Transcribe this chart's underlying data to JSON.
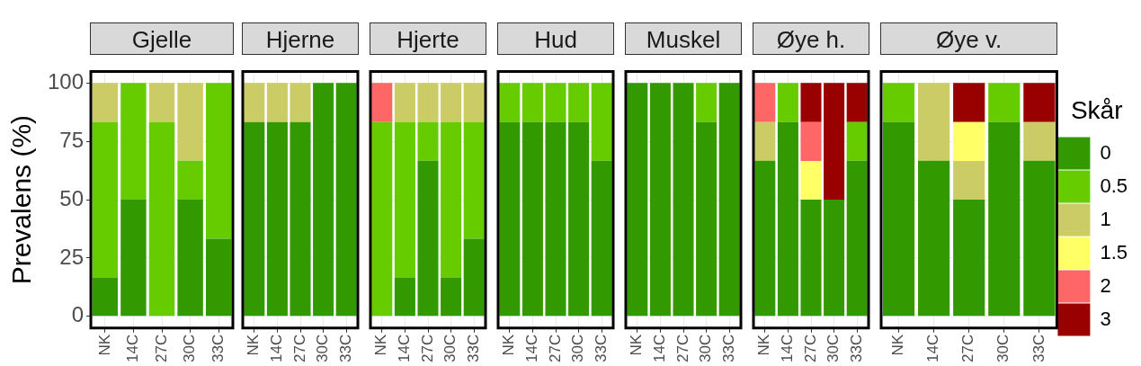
{
  "chart_data": [
    {
      "type": "bar",
      "title": "Gjelle",
      "ylabel": "Prevalens (%)",
      "stacked": true,
      "grid": true,
      "ylim": [
        -5,
        105
      ],
      "yticks": [
        0,
        25,
        50,
        75,
        100
      ],
      "categories": [
        "NK",
        "14C",
        "27C",
        "30C",
        "33C"
      ],
      "series": [
        {
          "color": "#339900",
          "values": [
            16.7,
            50,
            0,
            50,
            33.3
          ]
        },
        {
          "color": "#66cc00",
          "values": [
            66.6,
            50,
            83.3,
            16.7,
            66.7
          ]
        },
        {
          "color": "#cccc66",
          "values": [
            16.7,
            0,
            16.7,
            33.3,
            0
          ]
        }
      ]
    },
    {
      "type": "bar",
      "title": "Hjerne",
      "stacked": true,
      "grid": true,
      "tick_labels": "x",
      "ylim": [
        -5,
        105
      ],
      "yticks": [
        0,
        25,
        50,
        75,
        100
      ],
      "categories": [
        "NK",
        "14C",
        "27C",
        "30C",
        "33C"
      ],
      "series": [
        {
          "color": "#339900",
          "values": [
            83.3,
            83.3,
            83.3,
            100,
            100
          ]
        },
        {
          "color": "#cccc66",
          "values": [
            16.7,
            16.7,
            16.7,
            0,
            0
          ]
        }
      ]
    },
    {
      "type": "bar",
      "title": "Hjerte",
      "stacked": true,
      "grid": true,
      "tick_labels": "x",
      "ylim": [
        -5,
        105
      ],
      "yticks": [
        0,
        25,
        50,
        75,
        100
      ],
      "categories": [
        "NK",
        "14C",
        "27C",
        "30C",
        "33C"
      ],
      "series": [
        {
          "color": "#339900",
          "values": [
            0,
            16.7,
            66.7,
            16.7,
            33.3
          ]
        },
        {
          "color": "#66cc00",
          "values": [
            83.3,
            66.6,
            16.6,
            66.6,
            50
          ]
        },
        {
          "color": "#cccc66",
          "values": [
            0,
            16.7,
            16.7,
            16.7,
            16.7
          ]
        },
        {
          "color": "#ff6666",
          "values": [
            16.7,
            0,
            0,
            0,
            0
          ]
        }
      ]
    },
    {
      "type": "bar",
      "title": "Hud",
      "stacked": true,
      "grid": true,
      "tick_labels": "x",
      "ylim": [
        -5,
        105
      ],
      "yticks": [
        0,
        25,
        50,
        75,
        100
      ],
      "categories": [
        "NK",
        "14C",
        "27C",
        "30C",
        "33C"
      ],
      "series": [
        {
          "color": "#339900",
          "values": [
            83.3,
            83.3,
            83.3,
            83.3,
            66.7
          ]
        },
        {
          "color": "#66cc00",
          "values": [
            16.7,
            16.7,
            16.7,
            16.7,
            33.3
          ]
        }
      ]
    },
    {
      "type": "bar",
      "title": "Muskel",
      "stacked": true,
      "grid": true,
      "tick_labels": "x",
      "ylim": [
        -5,
        105
      ],
      "yticks": [
        0,
        25,
        50,
        75,
        100
      ],
      "categories": [
        "NK",
        "14C",
        "27C",
        "30C",
        "33C"
      ],
      "series": [
        {
          "color": "#339900",
          "values": [
            100,
            100,
            100,
            83.3,
            100
          ]
        },
        {
          "color": "#66cc00",
          "values": [
            0,
            0,
            0,
            16.7,
            0
          ]
        }
      ]
    },
    {
      "type": "bar",
      "title": "Øye h.",
      "stacked": true,
      "grid": true,
      "tick_labels": "x",
      "ylim": [
        -5,
        105
      ],
      "yticks": [
        0,
        25,
        50,
        75,
        100
      ],
      "categories": [
        "NK",
        "14C",
        "27C",
        "30C",
        "33C"
      ],
      "series": [
        {
          "color": "#339900",
          "values": [
            66.7,
            83.3,
            50,
            50,
            66.7
          ]
        },
        {
          "color": "#66cc00",
          "values": [
            0,
            16.7,
            0,
            0,
            16.6
          ]
        },
        {
          "color": "#cccc66",
          "values": [
            16.6,
            0,
            0,
            0,
            0
          ]
        },
        {
          "color": "#ffff66",
          "values": [
            0,
            0,
            16.6,
            0,
            0
          ]
        },
        {
          "color": "#ff6666",
          "values": [
            16.7,
            0,
            16.7,
            0,
            0
          ]
        },
        {
          "color": "#990000",
          "values": [
            0,
            0,
            16.7,
            50,
            16.7
          ]
        }
      ]
    },
    {
      "type": "bar",
      "title": "Øye v.",
      "stacked": true,
      "grid": true,
      "tick_labels": "x",
      "legend": "right",
      "legend_title": "Skår",
      "ylim": [
        -5,
        105
      ],
      "yticks": [
        0,
        25,
        50,
        75,
        100
      ],
      "categories": [
        "NK",
        "14C",
        "27C",
        "30C",
        "33C"
      ],
      "series": [
        {
          "name": "0",
          "color": "#339900",
          "values": [
            83.3,
            66.7,
            50,
            83.3,
            66.7
          ]
        },
        {
          "name": "0.5",
          "color": "#66cc00",
          "values": [
            16.7,
            0,
            0,
            16.7,
            0
          ]
        },
        {
          "name": "1",
          "color": "#cccc66",
          "values": [
            0,
            33.3,
            16.6,
            0,
            16.6
          ]
        },
        {
          "name": "1.5",
          "color": "#ffff66",
          "values": [
            0,
            0,
            16.7,
            0,
            0
          ]
        },
        {
          "name": "2",
          "color": "#ff6666",
          "values": [
            0,
            0,
            0,
            0,
            0
          ]
        },
        {
          "name": "3",
          "color": "#990000",
          "values": [
            0,
            0,
            16.7,
            0,
            16.7
          ]
        }
      ]
    }
  ]
}
